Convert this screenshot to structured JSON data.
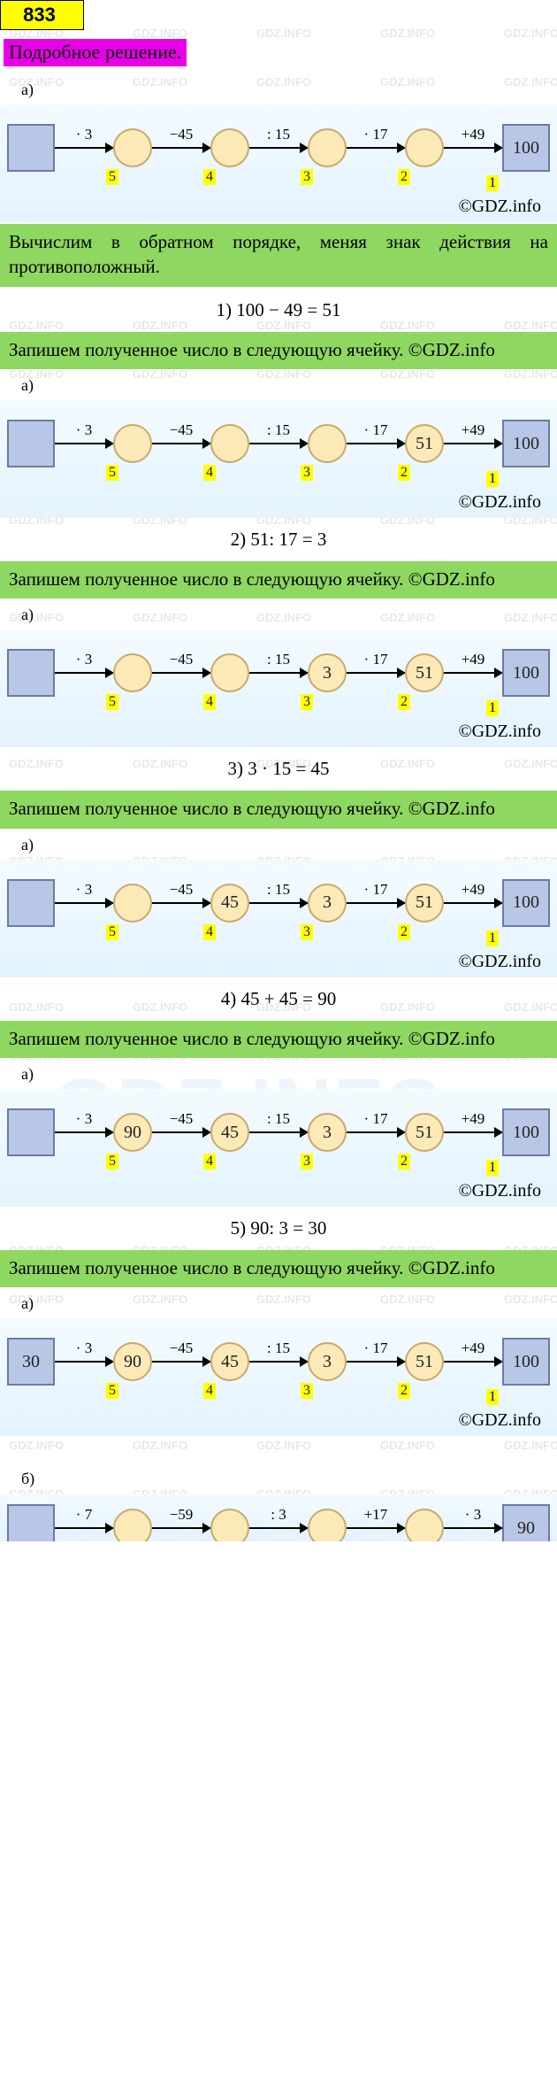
{
  "problem_number": "833",
  "title": "Подробное решение.",
  "watermark_small": "GDZ.INFO",
  "watermark_big": "GDZ.INFO",
  "copyright": "©GDZ.info",
  "green_intro": "Вычислим в обратном порядке, меняя знак действия на противоположный.",
  "green_repeat": "Запишем полученное число в следующую ячейку. ©GDZ.info",
  "letter_a": "а)",
  "letter_b": "б)",
  "ops_a": [
    "· 3",
    "−45",
    ": 15",
    "· 17",
    "+49"
  ],
  "steps_a": [
    "5",
    "4",
    "3",
    "2",
    "1"
  ],
  "end_a": "100",
  "ops_b": [
    "· 7",
    "−59",
    ": 3",
    "+17",
    "· 3"
  ],
  "end_b": "90",
  "calcs": [
    "1) 100 − 49 = 51",
    "2) 51: 17 = 3",
    "3) 3 · 15 = 45",
    "4) 45 + 45 = 90",
    "5) 90: 3 = 30"
  ],
  "chain_values": {
    "c1": [
      "",
      "",
      "",
      "",
      ""
    ],
    "c2": [
      "",
      "",
      "",
      "",
      "51"
    ],
    "c3": [
      "",
      "",
      "",
      "3",
      "51"
    ],
    "c4": [
      "",
      "",
      "45",
      "3",
      "51"
    ],
    "c5": [
      "",
      "90",
      "45",
      "3",
      "51"
    ],
    "c6_start": "30",
    "c6": [
      "90",
      "45",
      "3",
      "51"
    ]
  }
}
